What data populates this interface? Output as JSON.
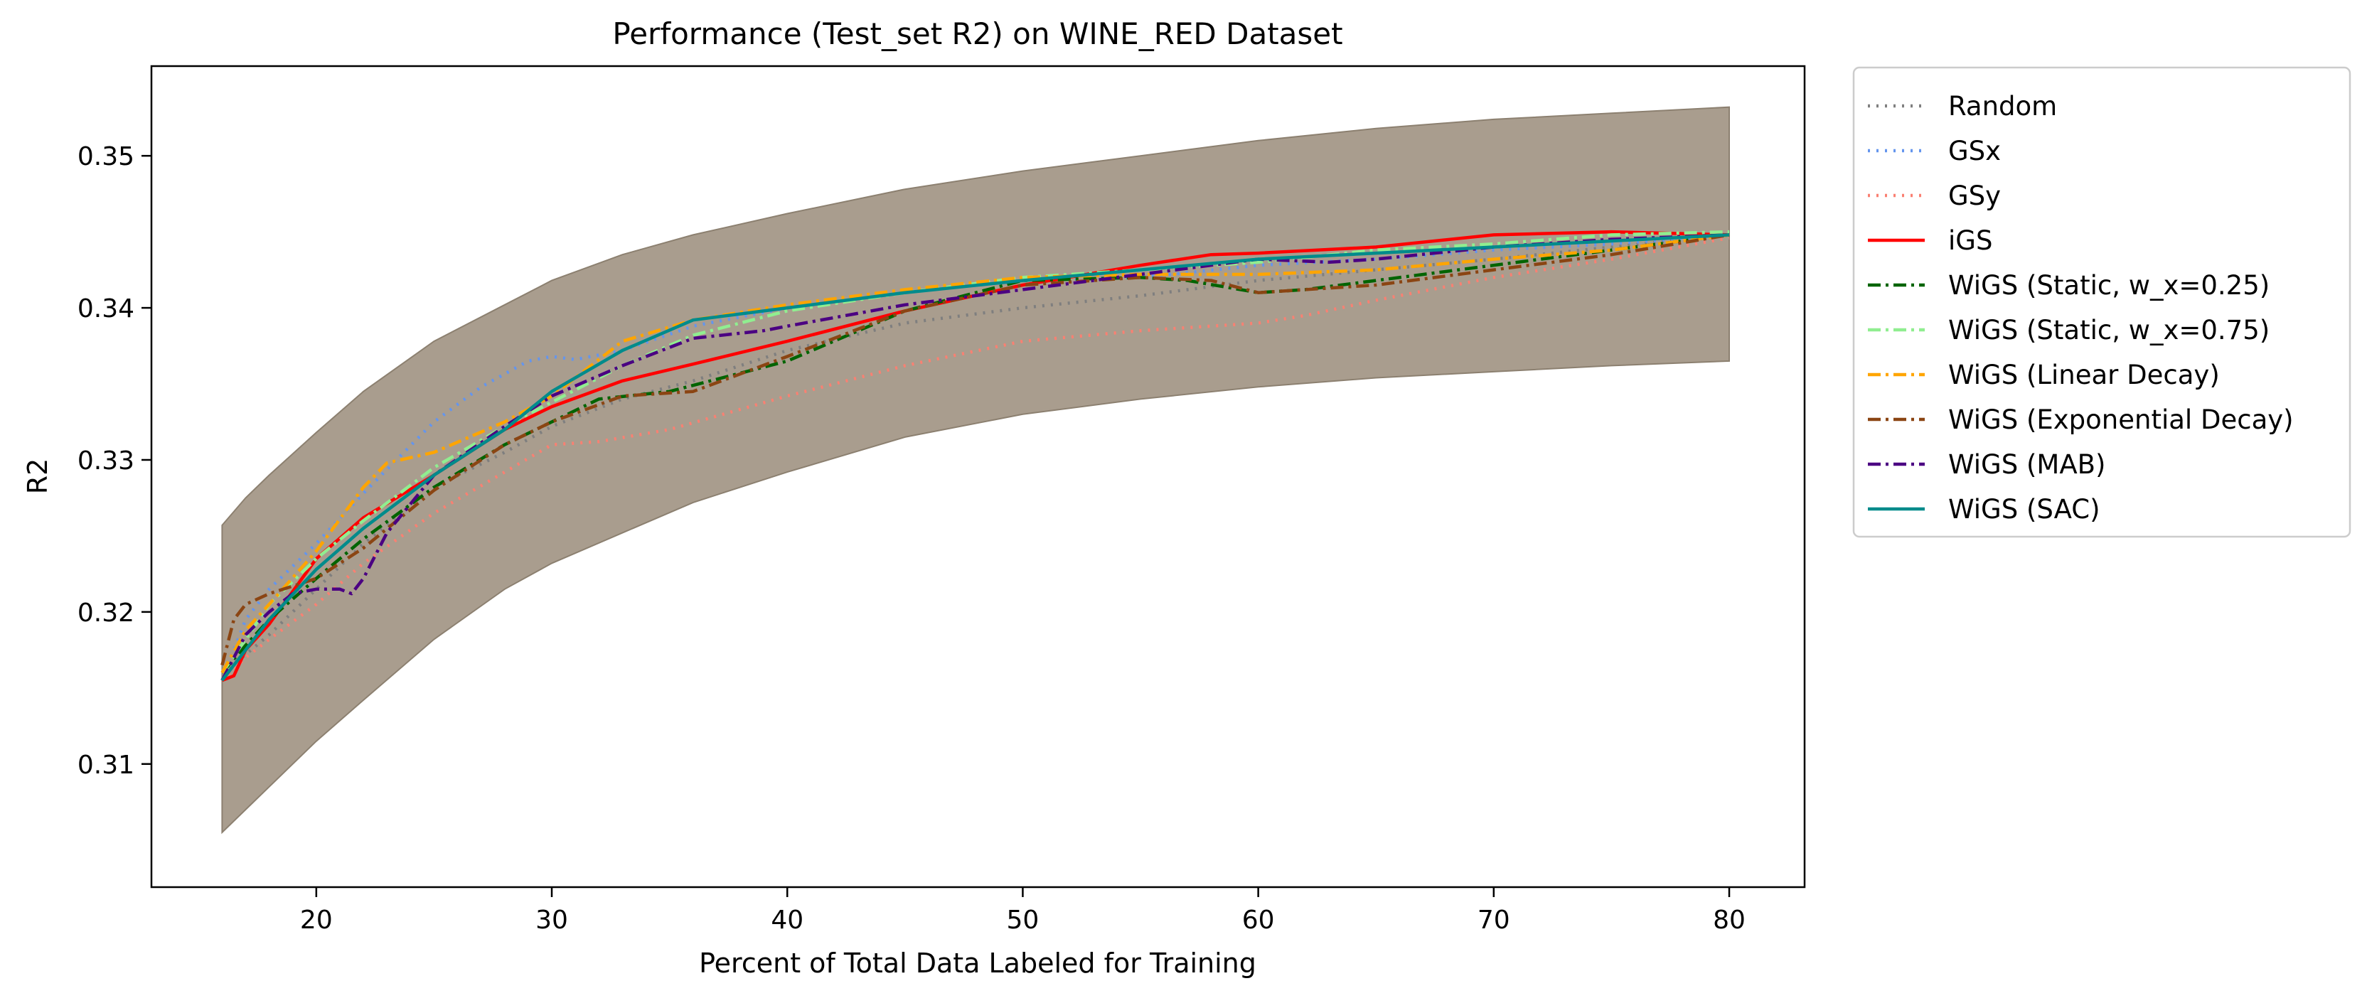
{
  "chart_data": {
    "type": "line",
    "title": "Performance (Test_set R2) on WINE_RED Dataset",
    "xlabel": "Percent of Total Data Labeled for Training",
    "ylabel": "R2",
    "xlim": [
      13,
      83.2
    ],
    "ylim": [
      0.3019,
      0.3559
    ],
    "xticks": [
      20,
      30,
      40,
      50,
      60,
      70,
      80
    ],
    "yticks": [
      0.31,
      0.32,
      0.33,
      0.34,
      0.35
    ],
    "xtick_labels": [
      "20",
      "30",
      "40",
      "50",
      "60",
      "70",
      "80"
    ],
    "ytick_labels": [
      "0.31",
      "0.32",
      "0.33",
      "0.34",
      "0.35"
    ],
    "grid": false,
    "legend_position": "outside-right-top",
    "band": {
      "color": "#a09282",
      "x": [
        16,
        17,
        18,
        20,
        22,
        25,
        28,
        30,
        33,
        36,
        40,
        45,
        50,
        55,
        60,
        65,
        70,
        75,
        80
      ],
      "upper": [
        0.3257,
        0.3275,
        0.329,
        0.3318,
        0.3345,
        0.3378,
        0.3402,
        0.3418,
        0.3435,
        0.3448,
        0.3462,
        0.3478,
        0.349,
        0.35,
        0.351,
        0.3518,
        0.3524,
        0.3528,
        0.3532
      ],
      "lower": [
        0.3055,
        0.307,
        0.3085,
        0.3115,
        0.3142,
        0.3182,
        0.3215,
        0.3232,
        0.3252,
        0.3272,
        0.3292,
        0.3315,
        0.333,
        0.334,
        0.3348,
        0.3354,
        0.3358,
        0.3362,
        0.3365
      ]
    },
    "series": [
      {
        "name": "Random",
        "color": "#7f7f7f",
        "dash": "dotted",
        "x": [
          16,
          17,
          18,
          20,
          22,
          25,
          28,
          30,
          33,
          36,
          40,
          45,
          50,
          55,
          60,
          65,
          70,
          75,
          80
        ],
        "y": [
          0.316,
          0.3172,
          0.3185,
          0.3215,
          0.3245,
          0.3282,
          0.3305,
          0.3322,
          0.334,
          0.3352,
          0.3372,
          0.339,
          0.34,
          0.3408,
          0.3418,
          0.3425,
          0.3432,
          0.344,
          0.3448
        ]
      },
      {
        "name": "GSx",
        "color": "#6495ed",
        "dash": "dotted",
        "x": [
          16,
          17,
          18,
          20,
          22,
          25,
          27,
          29,
          30,
          31,
          33,
          36,
          40,
          45,
          50,
          55,
          60,
          65,
          70,
          75,
          80
        ],
        "y": [
          0.3155,
          0.3195,
          0.3215,
          0.3245,
          0.3278,
          0.3325,
          0.3348,
          0.3365,
          0.3368,
          0.3366,
          0.3372,
          0.3388,
          0.34,
          0.341,
          0.3418,
          0.342,
          0.3428,
          0.3432,
          0.3438,
          0.3442,
          0.3448
        ]
      },
      {
        "name": "GSy",
        "color": "#fa8072",
        "dash": "dotted",
        "x": [
          16,
          17,
          18,
          20,
          22,
          25,
          28,
          30,
          32,
          35,
          40,
          45,
          50,
          55,
          60,
          62,
          65,
          70,
          75,
          80
        ],
        "y": [
          0.3155,
          0.317,
          0.3182,
          0.3205,
          0.3232,
          0.3265,
          0.3292,
          0.331,
          0.3312,
          0.332,
          0.3342,
          0.3362,
          0.3378,
          0.3385,
          0.339,
          0.3395,
          0.3405,
          0.342,
          0.3432,
          0.3446
        ]
      },
      {
        "name": "iGS",
        "color": "#ff0000",
        "dash": "solid",
        "x": [
          16,
          16.5,
          17,
          18,
          20,
          22,
          25,
          28,
          30,
          33,
          36,
          40,
          45,
          50,
          55,
          58,
          60,
          65,
          70,
          75,
          80
        ],
        "y": [
          0.3155,
          0.3158,
          0.3175,
          0.3192,
          0.3235,
          0.3262,
          0.329,
          0.332,
          0.3335,
          0.3352,
          0.3363,
          0.3378,
          0.3398,
          0.3415,
          0.3428,
          0.3435,
          0.3436,
          0.344,
          0.3448,
          0.345,
          0.3448
        ]
      },
      {
        "name": "WiGS (Static, w_x=0.25)",
        "color": "#006400",
        "dash": "dashdot",
        "x": [
          16,
          17,
          18,
          20,
          22,
          25,
          28,
          30,
          32,
          35,
          40,
          45,
          50,
          55,
          57,
          60,
          62,
          65,
          70,
          75,
          80
        ],
        "y": [
          0.316,
          0.3178,
          0.3195,
          0.3222,
          0.3248,
          0.3282,
          0.331,
          0.3325,
          0.334,
          0.3345,
          0.3365,
          0.3398,
          0.3418,
          0.342,
          0.3418,
          0.341,
          0.3412,
          0.3418,
          0.3428,
          0.3438,
          0.3448
        ]
      },
      {
        "name": "WiGS (Static, w_x=0.75)",
        "color": "#90ee90",
        "dash": "dashdot",
        "x": [
          16,
          17,
          18,
          20,
          22,
          25,
          28,
          30,
          33,
          36,
          40,
          45,
          50,
          55,
          60,
          65,
          70,
          75,
          80
        ],
        "y": [
          0.316,
          0.3182,
          0.3205,
          0.3235,
          0.326,
          0.3295,
          0.3322,
          0.3338,
          0.3362,
          0.3382,
          0.3398,
          0.341,
          0.342,
          0.3425,
          0.343,
          0.3438,
          0.3442,
          0.3448,
          0.345
        ]
      },
      {
        "name": "WiGS (Linear Decay)",
        "color": "#ffa500",
        "dash": "dashdot",
        "x": [
          16,
          17,
          18,
          20,
          22,
          23,
          25,
          28,
          30,
          33,
          36,
          40,
          45,
          50,
          55,
          60,
          65,
          70,
          75,
          80
        ],
        "y": [
          0.316,
          0.3188,
          0.3205,
          0.324,
          0.3282,
          0.3298,
          0.3305,
          0.3325,
          0.3342,
          0.3378,
          0.3392,
          0.3402,
          0.3412,
          0.342,
          0.3422,
          0.3422,
          0.3425,
          0.3432,
          0.3438,
          0.3448
        ]
      },
      {
        "name": "WiGS (Exponential Decay)",
        "color": "#8b4513",
        "dash": "dashdot",
        "x": [
          16,
          16.5,
          17,
          18,
          20,
          22,
          25,
          28,
          30,
          33,
          36,
          40,
          45,
          50,
          55,
          58,
          60,
          65,
          70,
          75,
          80
        ],
        "y": [
          0.3165,
          0.3195,
          0.3205,
          0.3212,
          0.3222,
          0.3242,
          0.328,
          0.331,
          0.3325,
          0.3342,
          0.3345,
          0.3368,
          0.3398,
          0.3415,
          0.342,
          0.3418,
          0.341,
          0.3415,
          0.3425,
          0.3435,
          0.3448
        ]
      },
      {
        "name": "WiGS (MAB)",
        "color": "#4b0082",
        "dash": "dashdot",
        "x": [
          16,
          17,
          18,
          19,
          20,
          21,
          21.5,
          22,
          23,
          25,
          28,
          30,
          33,
          36,
          39,
          40,
          45,
          50,
          55,
          60,
          63,
          65,
          70,
          75,
          80
        ],
        "y": [
          0.3155,
          0.3185,
          0.32,
          0.3212,
          0.3215,
          0.3215,
          0.3212,
          0.3222,
          0.3252,
          0.329,
          0.3322,
          0.3342,
          0.3362,
          0.338,
          0.3385,
          0.3388,
          0.3402,
          0.3412,
          0.3422,
          0.3432,
          0.343,
          0.3432,
          0.344,
          0.3445,
          0.3448
        ]
      },
      {
        "name": "WiGS (SAC)",
        "color": "#008b8b",
        "dash": "solid",
        "x": [
          16,
          17,
          18,
          20,
          22,
          25,
          28,
          30,
          33,
          36,
          40,
          45,
          50,
          55,
          60,
          65,
          70,
          75,
          80
        ],
        "y": [
          0.3155,
          0.3175,
          0.3195,
          0.3228,
          0.3255,
          0.329,
          0.332,
          0.3345,
          0.3372,
          0.3392,
          0.34,
          0.341,
          0.3418,
          0.3425,
          0.3432,
          0.3436,
          0.344,
          0.3444,
          0.3448
        ]
      }
    ]
  }
}
